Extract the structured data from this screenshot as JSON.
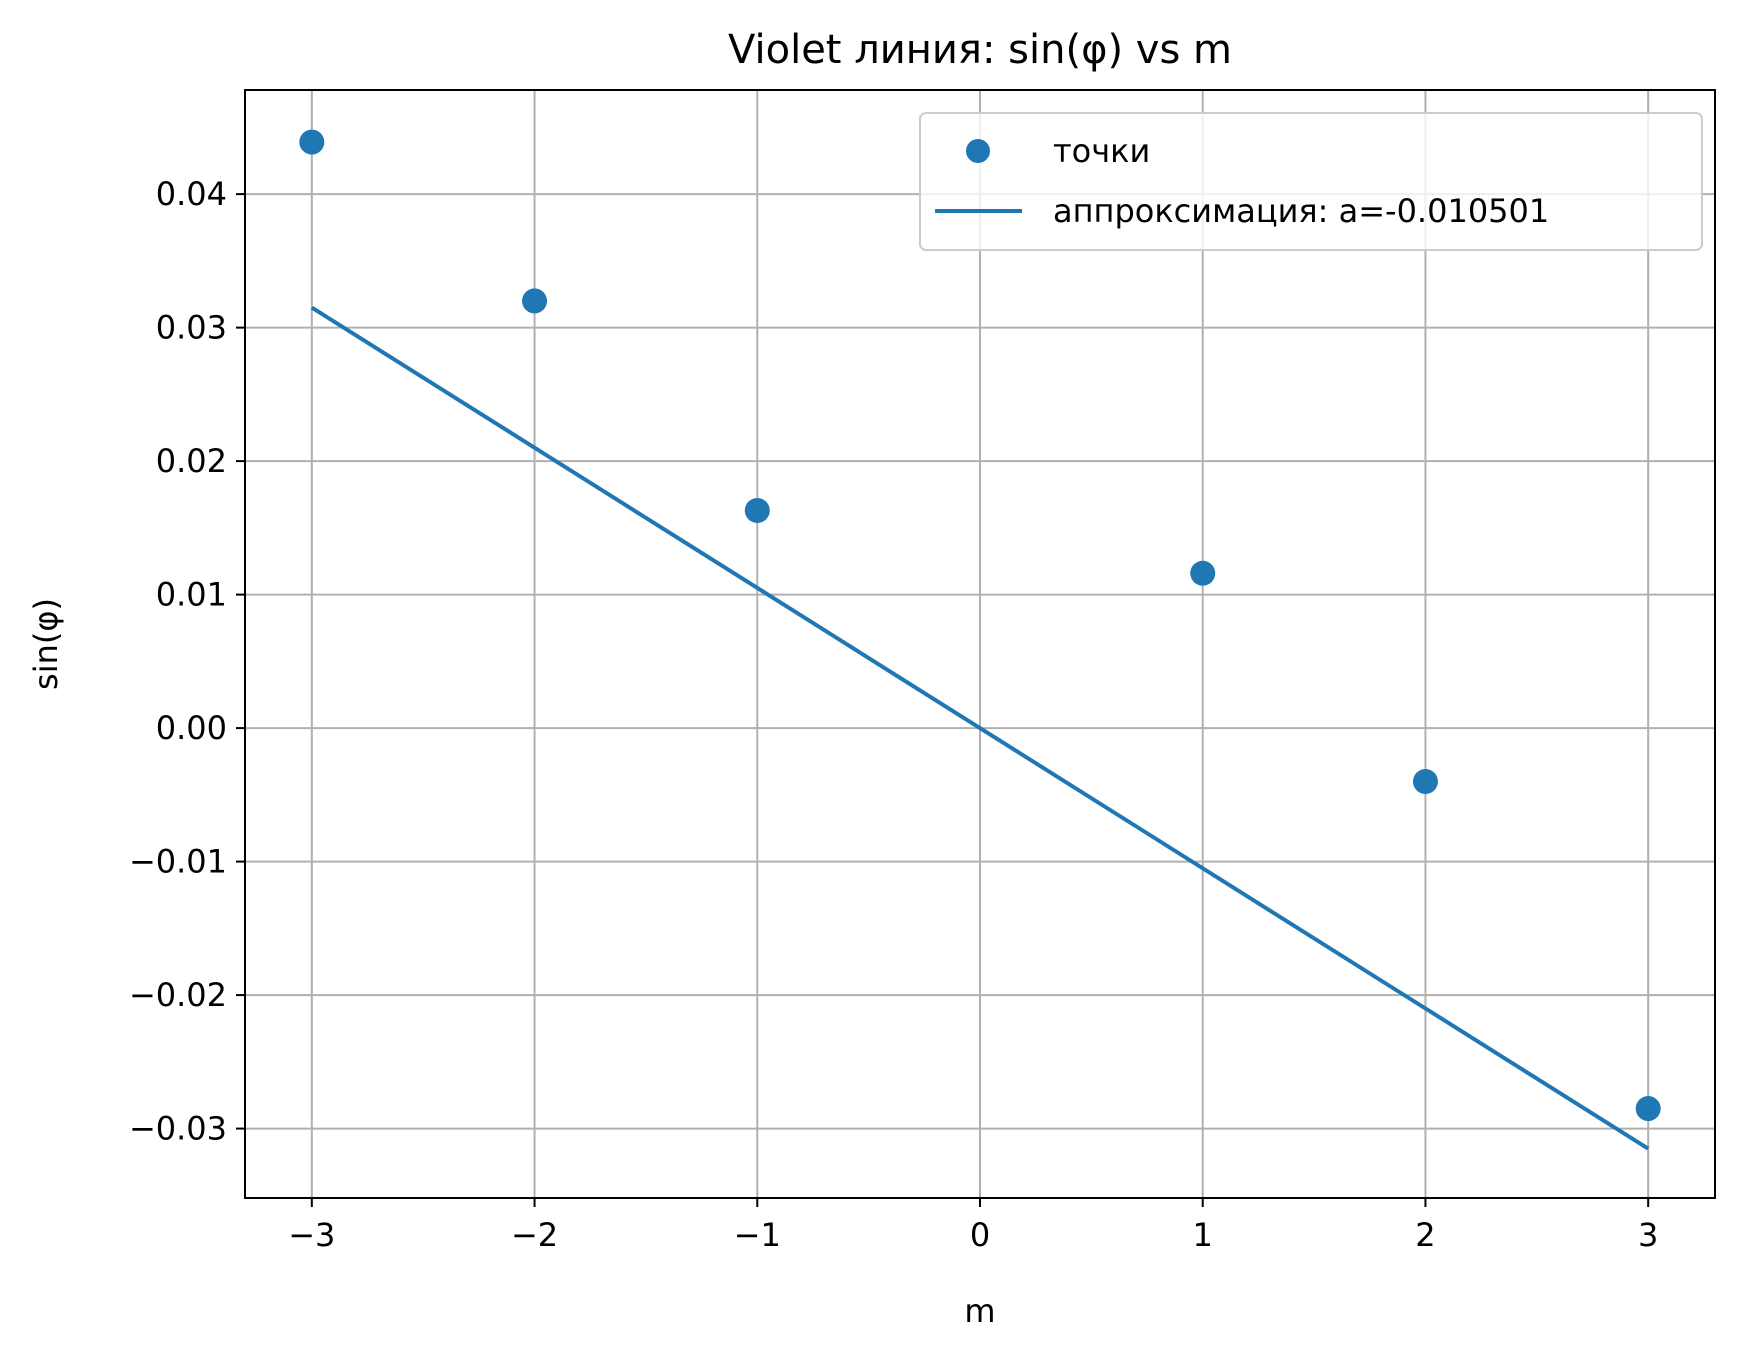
{
  "chart_data": {
    "type": "scatter",
    "title": "Violet линия: sin(φ) vs m",
    "xlabel": "m",
    "ylabel": "sin(φ)",
    "xlim": [
      -3.3,
      3.3
    ],
    "ylim": [
      -0.0352,
      0.0478
    ],
    "grid": true,
    "legend_position": "top-right",
    "x_ticks": [
      -3,
      -2,
      -1,
      0,
      1,
      2,
      3
    ],
    "x_tick_labels": [
      "−3",
      "−2",
      "−1",
      "0",
      "1",
      "2",
      "3"
    ],
    "y_ticks": [
      -0.03,
      -0.02,
      -0.01,
      0.0,
      0.01,
      0.02,
      0.03,
      0.04
    ],
    "y_tick_labels": [
      "−0.03",
      "−0.02",
      "−0.01",
      "0.00",
      "0.01",
      "0.02",
      "0.03",
      "0.04"
    ],
    "series": [
      {
        "name": "точки",
        "kind": "scatter",
        "color": "#1f77b4",
        "x": [
          -3,
          -2,
          -1,
          1,
          2,
          3
        ],
        "y": [
          0.0439,
          0.032,
          0.0163,
          0.0116,
          -0.004,
          -0.0285
        ]
      },
      {
        "name": "аппроксимация: a=-0.010501",
        "kind": "line",
        "color": "#1f77b4",
        "x": [
          -3,
          3
        ],
        "y": [
          0.031503,
          -0.031503
        ]
      }
    ]
  }
}
